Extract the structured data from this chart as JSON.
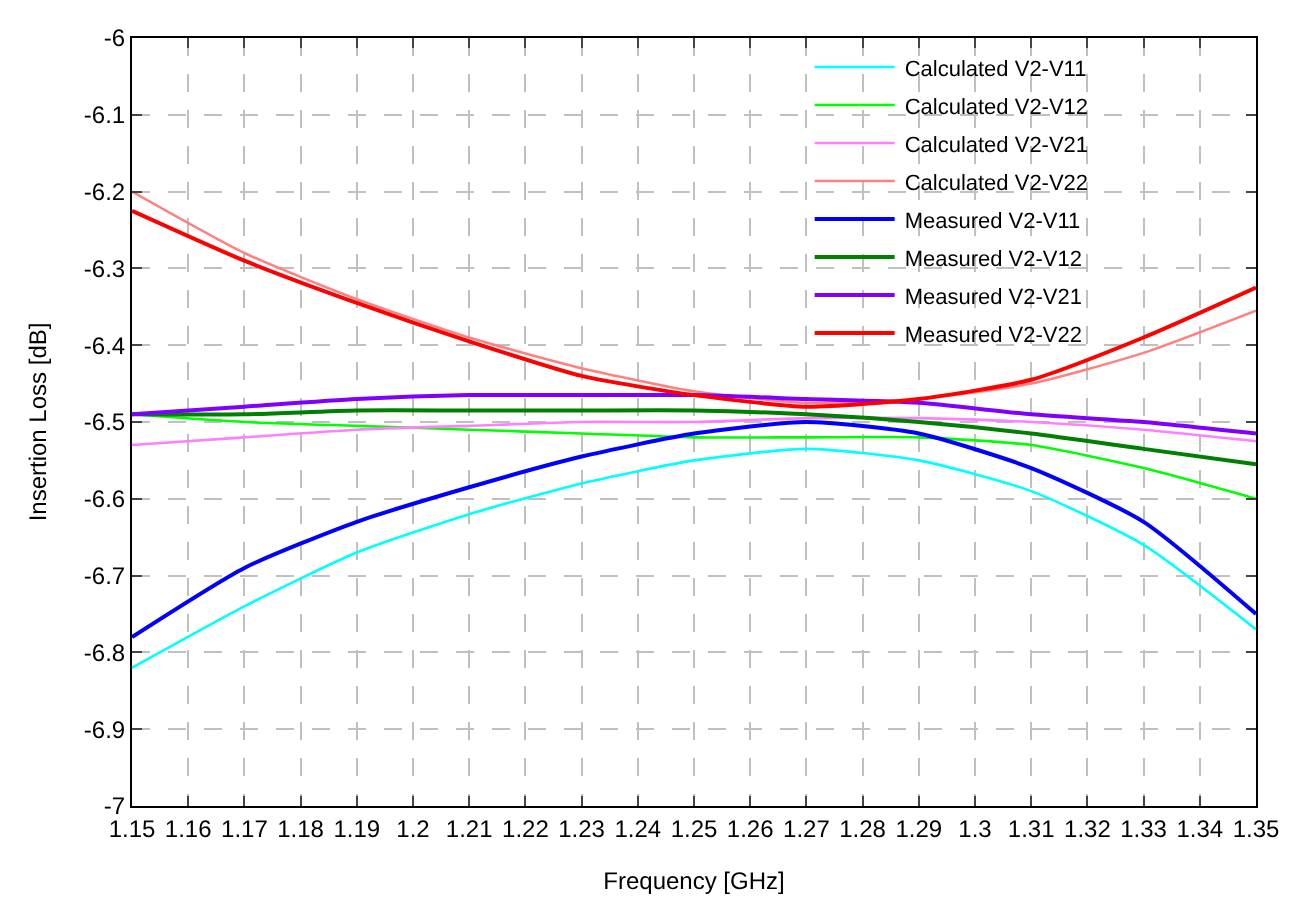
{
  "chart_data": {
    "type": "line",
    "xlabel": "Frequency [GHz]",
    "ylabel": "Insertion Loss [dB]",
    "x": [
      1.15,
      1.17,
      1.19,
      1.21,
      1.23,
      1.25,
      1.27,
      1.29,
      1.31,
      1.33,
      1.35
    ],
    "xlim": [
      1.15,
      1.35
    ],
    "xticks": [
      1.15,
      1.16,
      1.17,
      1.18,
      1.19,
      1.2,
      1.21,
      1.22,
      1.23,
      1.24,
      1.25,
      1.26,
      1.27,
      1.28,
      1.29,
      1.3,
      1.31,
      1.32,
      1.33,
      1.34,
      1.35
    ],
    "ylim": [
      -7,
      -6
    ],
    "yticks": [
      -7,
      -6.9,
      -6.8,
      -6.7,
      -6.6,
      -6.5,
      -6.4,
      -6.3,
      -6.2,
      -6.1,
      -6
    ],
    "grid": true,
    "legend": "top right",
    "marker": "none",
    "line_style": "solid",
    "series": [
      {
        "name": "Calculated V2-V11",
        "color": "#00ffff",
        "values": [
          -6.82,
          -6.74,
          -6.67,
          -6.62,
          -6.58,
          -6.55,
          -6.535,
          -6.55,
          -6.59,
          -6.66,
          -6.77
        ]
      },
      {
        "name": "Calculated V2-V12",
        "color": "#00ff00",
        "values": [
          -6.49,
          -6.5,
          -6.505,
          -6.51,
          -6.515,
          -6.52,
          -6.52,
          -6.52,
          -6.53,
          -6.56,
          -6.6
        ]
      },
      {
        "name": "Calculated V2-V21",
        "color": "#ff80ff",
        "values": [
          -6.53,
          -6.52,
          -6.51,
          -6.505,
          -6.5,
          -6.5,
          -6.495,
          -6.495,
          -6.5,
          -6.51,
          -6.525
        ]
      },
      {
        "name": "Calculated V2-V22",
        "color": "#ff8080",
        "values": [
          -6.2,
          -6.28,
          -6.34,
          -6.39,
          -6.43,
          -6.46,
          -6.475,
          -6.47,
          -6.45,
          -6.41,
          -6.355
        ]
      },
      {
        "name": "Measured V2-V11",
        "color": "#0000ff",
        "values": [
          -6.78,
          -6.69,
          -6.63,
          -6.585,
          -6.545,
          -6.515,
          -6.5,
          -6.515,
          -6.56,
          -6.63,
          -6.75
        ]
      },
      {
        "name": "Measured V2-V12",
        "color": "#008000",
        "values": [
          -6.49,
          -6.49,
          -6.485,
          -6.485,
          -6.485,
          -6.485,
          -6.49,
          -6.5,
          -6.515,
          -6.535,
          -6.555
        ]
      },
      {
        "name": "Measured V2-V21",
        "color": "#8000ff",
        "values": [
          -6.49,
          -6.48,
          -6.47,
          -6.465,
          -6.465,
          -6.465,
          -6.47,
          -6.475,
          -6.49,
          -6.5,
          -6.515
        ]
      },
      {
        "name": "Measured V2-V22",
        "color": "#ff0000",
        "values": [
          -6.225,
          -6.29,
          -6.345,
          -6.395,
          -6.44,
          -6.465,
          -6.48,
          -6.47,
          -6.445,
          -6.39,
          -6.325
        ]
      }
    ]
  }
}
